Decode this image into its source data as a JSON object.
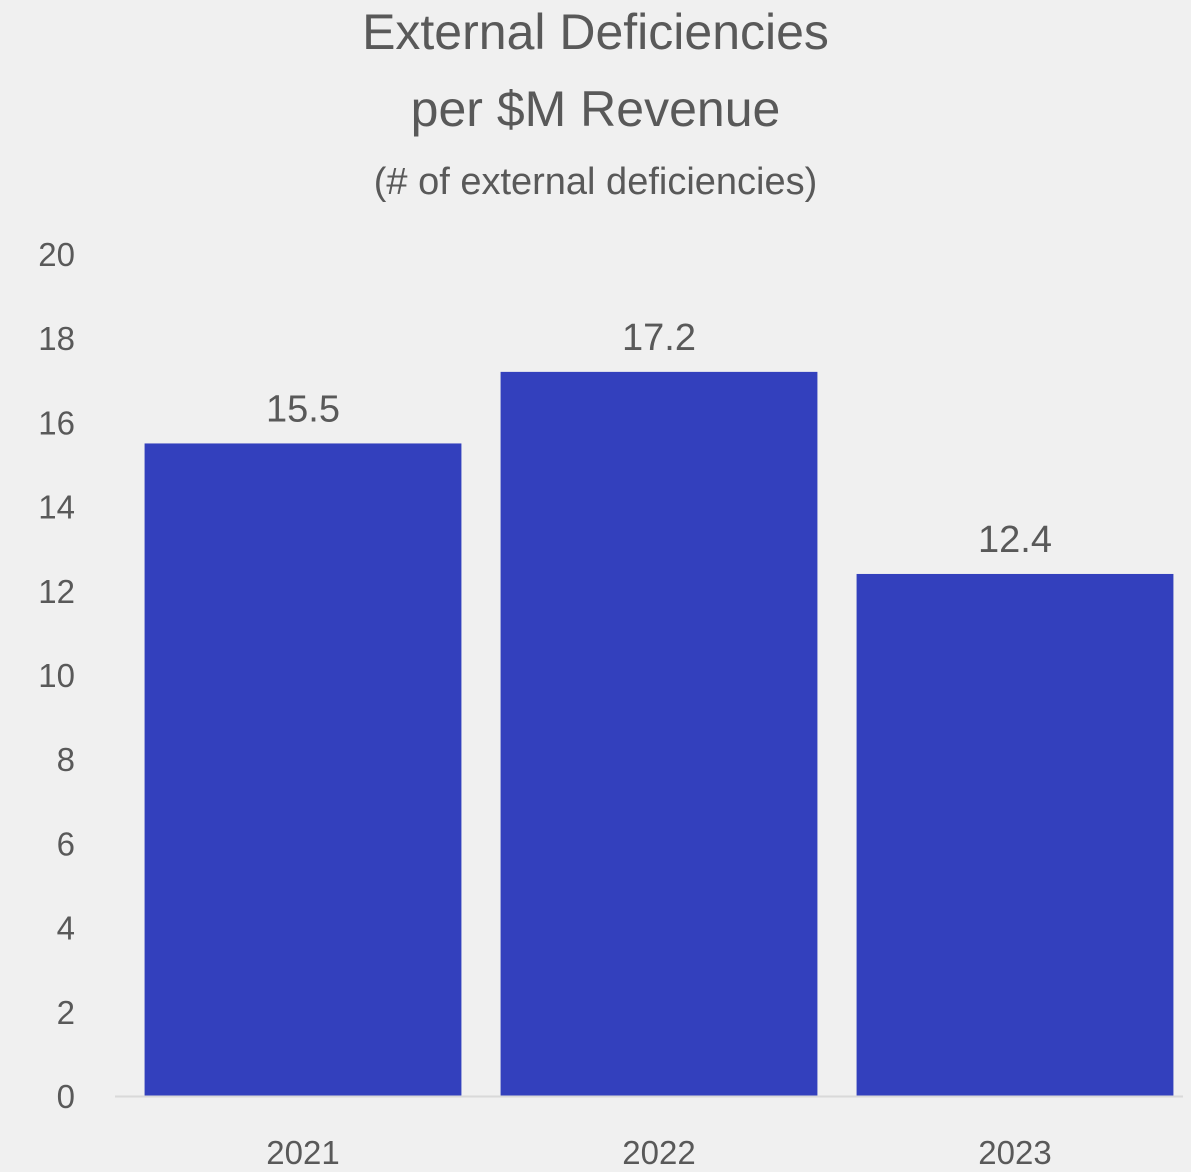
{
  "chart_data": {
    "type": "bar",
    "title_lines": [
      "External Deficiencies",
      "per $M Revenue"
    ],
    "subtitle": "(# of external deficiencies)",
    "categories": [
      "2021",
      "2022",
      "2023"
    ],
    "values": [
      15.5,
      17.2,
      12.4
    ],
    "data_labels": [
      "15.5",
      "17.2",
      "12.4"
    ],
    "ylim": [
      0,
      20
    ],
    "yticks": [
      0,
      2,
      4,
      6,
      8,
      10,
      12,
      14,
      16,
      18,
      20
    ],
    "xlabel": "",
    "ylabel": "",
    "grid": false,
    "legend": "none",
    "colors": {
      "bar": "#3340bd",
      "text": "#595959",
      "axis_line": "#d9d9d9",
      "background": "#f0f0f0"
    }
  }
}
